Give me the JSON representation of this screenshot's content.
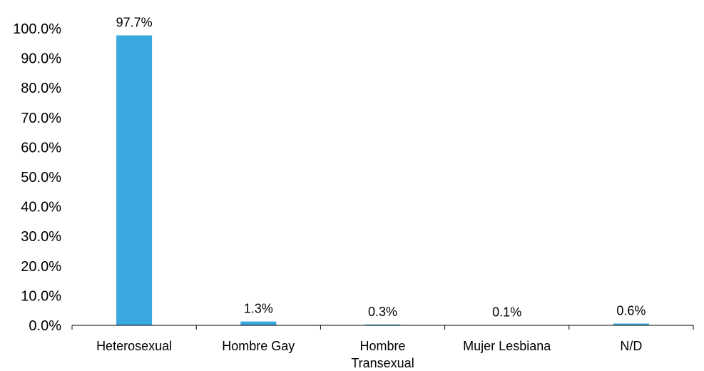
{
  "colors": {
    "bar": "#3AA9E0",
    "axis": "#000000",
    "text": "#000000"
  },
  "chart_data": {
    "type": "bar",
    "categories": [
      "Heterosexual",
      "Hombre Gay",
      "Hombre Transexual",
      "Mujer Lesbiana",
      "N/D"
    ],
    "category_labels": [
      [
        "Heterosexual"
      ],
      [
        "Hombre Gay"
      ],
      [
        "Hombre",
        "Transexual"
      ],
      [
        "Mujer Lesbiana"
      ],
      [
        "N/D"
      ]
    ],
    "values": [
      97.7,
      1.3,
      0.3,
      0.1,
      0.6
    ],
    "data_labels": [
      "97.7%",
      "1.3%",
      "0.3%",
      "0.1%",
      "0.6%"
    ],
    "title": "",
    "xlabel": "",
    "ylabel": "",
    "ylim": [
      0,
      100
    ],
    "yticks": [
      "0.0%",
      "10.0%",
      "20.0%",
      "30.0%",
      "40.0%",
      "50.0%",
      "60.0%",
      "70.0%",
      "80.0%",
      "90.0%",
      "100.0%"
    ],
    "grid": false,
    "legend": "none"
  }
}
